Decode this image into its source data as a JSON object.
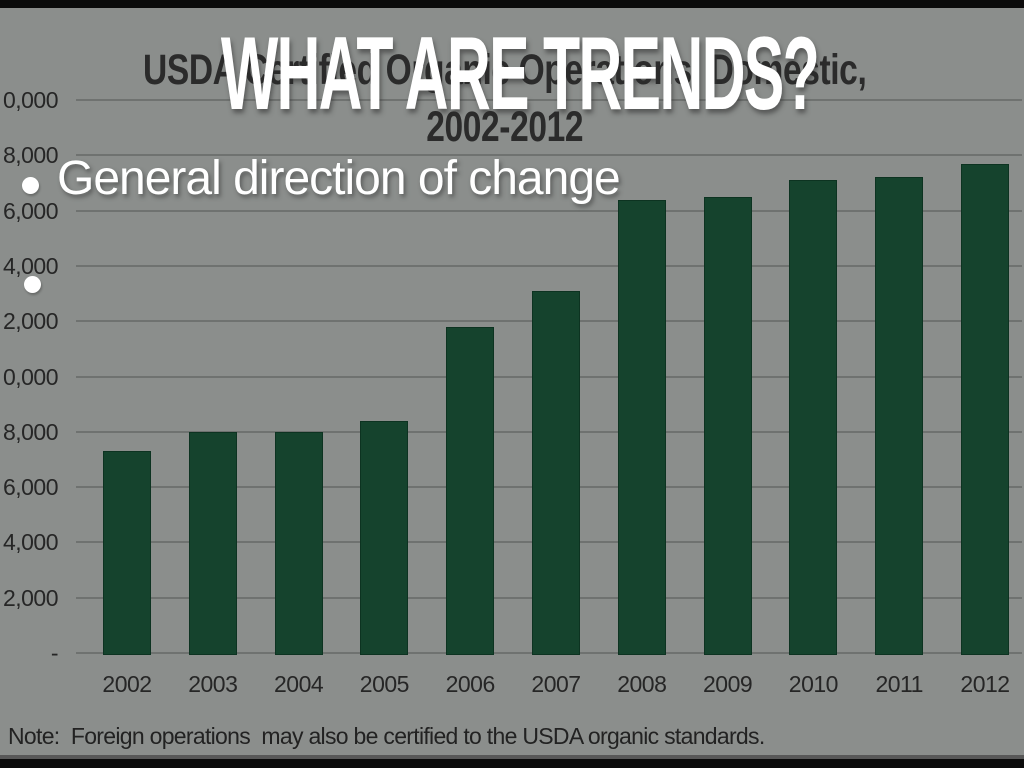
{
  "slide": {
    "overlay_title": "WHAT ARE TRENDS?",
    "bullets": [
      {
        "label": "General direction of change"
      },
      {
        "label": ""
      }
    ],
    "colors": {
      "background": "#8b8e8c",
      "overlay_text": "#ffffff",
      "top_bottom_strip": "#0b0b0b"
    }
  },
  "chart_data": {
    "type": "bar",
    "title": "USDA Certified Organic Operations, Domestic, 2002-2012",
    "title_line1": "USDA Certified Organic Operations, Domestic,",
    "title_line2": "2002-2012",
    "categories": [
      "2002",
      "2003",
      "2004",
      "2005",
      "2006",
      "2007",
      "2008",
      "2009",
      "2010",
      "2011",
      "2012"
    ],
    "values": [
      7300,
      8000,
      8000,
      8400,
      11800,
      13100,
      16400,
      16500,
      17100,
      17200,
      17700
    ],
    "xlabel": "",
    "ylabel": "",
    "ylim": [
      0,
      20000
    ],
    "y_tick_step": 2000,
    "y_tick_values": [
      20000,
      18000,
      16000,
      14000,
      12000,
      10000,
      8000,
      6000,
      4000,
      2000,
      0
    ],
    "y_tick_labels_visible": [
      "0,000",
      "8,000",
      "6,000",
      "4,000",
      "2,000",
      "0,000",
      "8,000",
      "6,000",
      "4,000",
      "2,000",
      "-"
    ],
    "grid": true,
    "legend": false,
    "bar_color": "#15432d",
    "gridline_color": "#6f7270",
    "axis_text_color": "#262626",
    "note": "Note:  Foreign operations  may also be certified to the USDA organic standards."
  }
}
